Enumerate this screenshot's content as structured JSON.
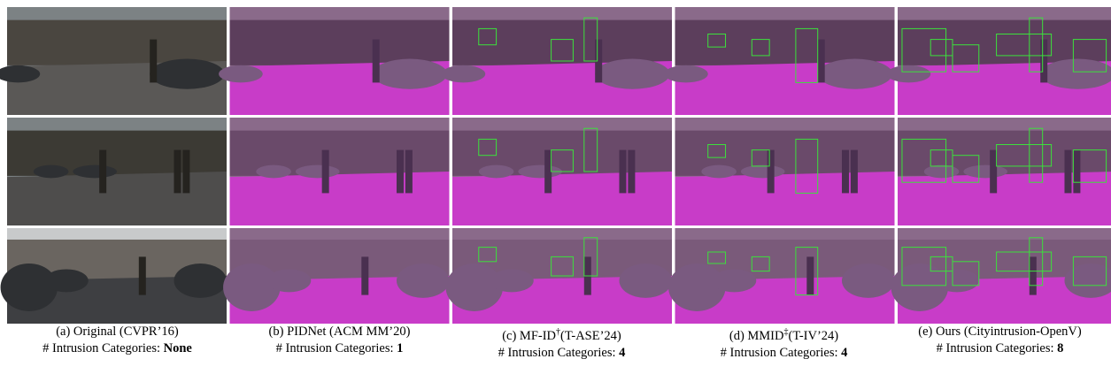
{
  "figure": {
    "columns": [
      {
        "label": "(a) Original",
        "marker": null,
        "venue": "(CVPR’16)",
        "count_label": "# Intrusion Categories:",
        "count": "None"
      },
      {
        "label": "(b) PIDNet",
        "marker": null,
        "venue": "(ACM MM’20)",
        "count_label": "# Intrusion Categories:",
        "count": 1
      },
      {
        "label": "(c) MF-ID",
        "marker": "†",
        "venue": "(T-ASE’24)",
        "count_label": "# Intrusion Categories:",
        "count": 4
      },
      {
        "label": "(d) MMID",
        "marker": "‡",
        "venue": "(T-IV’24)",
        "count_label": "# Intrusion Categories:",
        "count": 4
      },
      {
        "label": "(e) Ours",
        "marker": null,
        "venue": "(Cityintrusion-OpenV)",
        "count_label": "# Intrusion Categories:",
        "count": 8
      }
    ]
  }
}
